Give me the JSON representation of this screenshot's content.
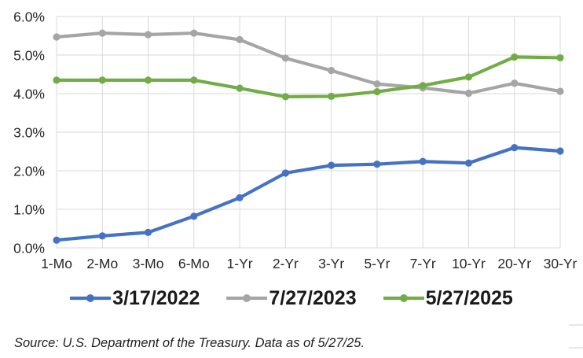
{
  "chart_data": {
    "type": "line",
    "categories": [
      "1-Mo",
      "2-Mo",
      "3-Mo",
      "6-Mo",
      "1-Yr",
      "2-Yr",
      "3-Yr",
      "5-Yr",
      "7-Yr",
      "10-Yr",
      "20-Yr",
      "30-Yr"
    ],
    "series": [
      {
        "name": "3/17/2022",
        "color": "#4472C4",
        "values": [
          0.2,
          0.31,
          0.4,
          0.82,
          1.3,
          1.94,
          2.14,
          2.17,
          2.24,
          2.2,
          2.6,
          2.51
        ]
      },
      {
        "name": "7/27/2023",
        "color": "#A5A5A5",
        "values": [
          5.47,
          5.57,
          5.53,
          5.57,
          5.4,
          4.92,
          4.6,
          4.25,
          4.15,
          4.01,
          4.27,
          4.06
        ]
      },
      {
        "name": "5/27/2025",
        "color": "#70AD47",
        "values": [
          4.35,
          4.35,
          4.35,
          4.35,
          4.14,
          3.92,
          3.93,
          4.05,
          4.21,
          4.43,
          4.95,
          4.93
        ]
      }
    ],
    "title": "",
    "xlabel": "",
    "ylabel": "",
    "ylim": [
      0,
      6
    ],
    "ytick_step": 1,
    "ytick_labels": [
      "0.0%",
      "1.0%",
      "2.0%",
      "3.0%",
      "4.0%",
      "5.0%",
      "6.0%"
    ],
    "grid": true,
    "legend_position": "bottom"
  },
  "source_note": "Source: U.S. Department of the Treasury. Data as of 5/27/25.",
  "colors": {
    "gridline": "#d9d9d9",
    "axis_text": "#262626",
    "legend_text": "#1a1a1a",
    "background": "#ffffff"
  }
}
